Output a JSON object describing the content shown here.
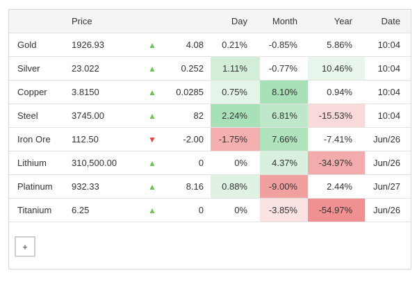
{
  "colors": {
    "header_bg": "#f5f5f5",
    "table_border": "#d8d8d8",
    "row_border": "#e2e2e2",
    "text": "#333333",
    "arrow_up": "#6fc554",
    "arrow_down": "#e8413c"
  },
  "arrow_glyphs": {
    "up": "▲",
    "down": "▼"
  },
  "table": {
    "headers": {
      "name": "",
      "price": "Price",
      "arrow": "",
      "change": "",
      "day": "Day",
      "month": "Month",
      "year": "Year",
      "date": "Date"
    },
    "rows": [
      {
        "name": "Gold",
        "price": "1926.93",
        "arrow": "up",
        "change": "4.08",
        "day": "0.21%",
        "day_bg": "",
        "month": "-0.85%",
        "month_bg": "",
        "year": "5.86%",
        "year_bg": "",
        "date": "10:04"
      },
      {
        "name": "Silver",
        "price": "23.022",
        "arrow": "up",
        "change": "0.252",
        "day": "1.11%",
        "day_bg": "#d2edd8",
        "month": "-0.77%",
        "month_bg": "",
        "year": "10.46%",
        "year_bg": "#e9f6ec",
        "date": "10:04"
      },
      {
        "name": "Copper",
        "price": "3.8150",
        "arrow": "up",
        "change": "0.0285",
        "day": "0.75%",
        "day_bg": "#e4f4e8",
        "month": "8.10%",
        "month_bg": "#a8e1b8",
        "year": "0.94%",
        "year_bg": "",
        "date": "10:04"
      },
      {
        "name": "Steel",
        "price": "3745.00",
        "arrow": "up",
        "change": "82",
        "day": "2.24%",
        "day_bg": "#a8e1b8",
        "month": "6.81%",
        "month_bg": "#bfe8ca",
        "year": "-15.53%",
        "year_bg": "#f9d9d9",
        "date": "10:04"
      },
      {
        "name": "Iron Ore",
        "price": "112.50",
        "arrow": "down",
        "change": "-2.00",
        "day": "-1.75%",
        "day_bg": "#f4afaf",
        "month": "7.66%",
        "month_bg": "#aee3bc",
        "year": "-7.41%",
        "year_bg": "",
        "date": "Jun/26"
      },
      {
        "name": "Lithium",
        "price": "310,500.00",
        "arrow": "up",
        "change": "0",
        "day": "0%",
        "day_bg": "",
        "month": "4.37%",
        "month_bg": "#d8f0dd",
        "year": "-34.97%",
        "year_bg": "#f3acac",
        "date": "Jun/26"
      },
      {
        "name": "Platinum",
        "price": "932.33",
        "arrow": "up",
        "change": "8.16",
        "day": "0.88%",
        "day_bg": "#e0f2e4",
        "month": "-9.00%",
        "month_bg": "#f1a0a0",
        "year": "2.44%",
        "year_bg": "",
        "date": "Jun/27"
      },
      {
        "name": "Titanium",
        "price": "6.25",
        "arrow": "up",
        "change": "0",
        "day": "0%",
        "day_bg": "",
        "month": "-3.85%",
        "month_bg": "#fbe3e3",
        "year": "-54.97%",
        "year_bg": "#f09090",
        "date": "Jun/26"
      }
    ]
  },
  "footer": {
    "add_button_label": "+"
  }
}
